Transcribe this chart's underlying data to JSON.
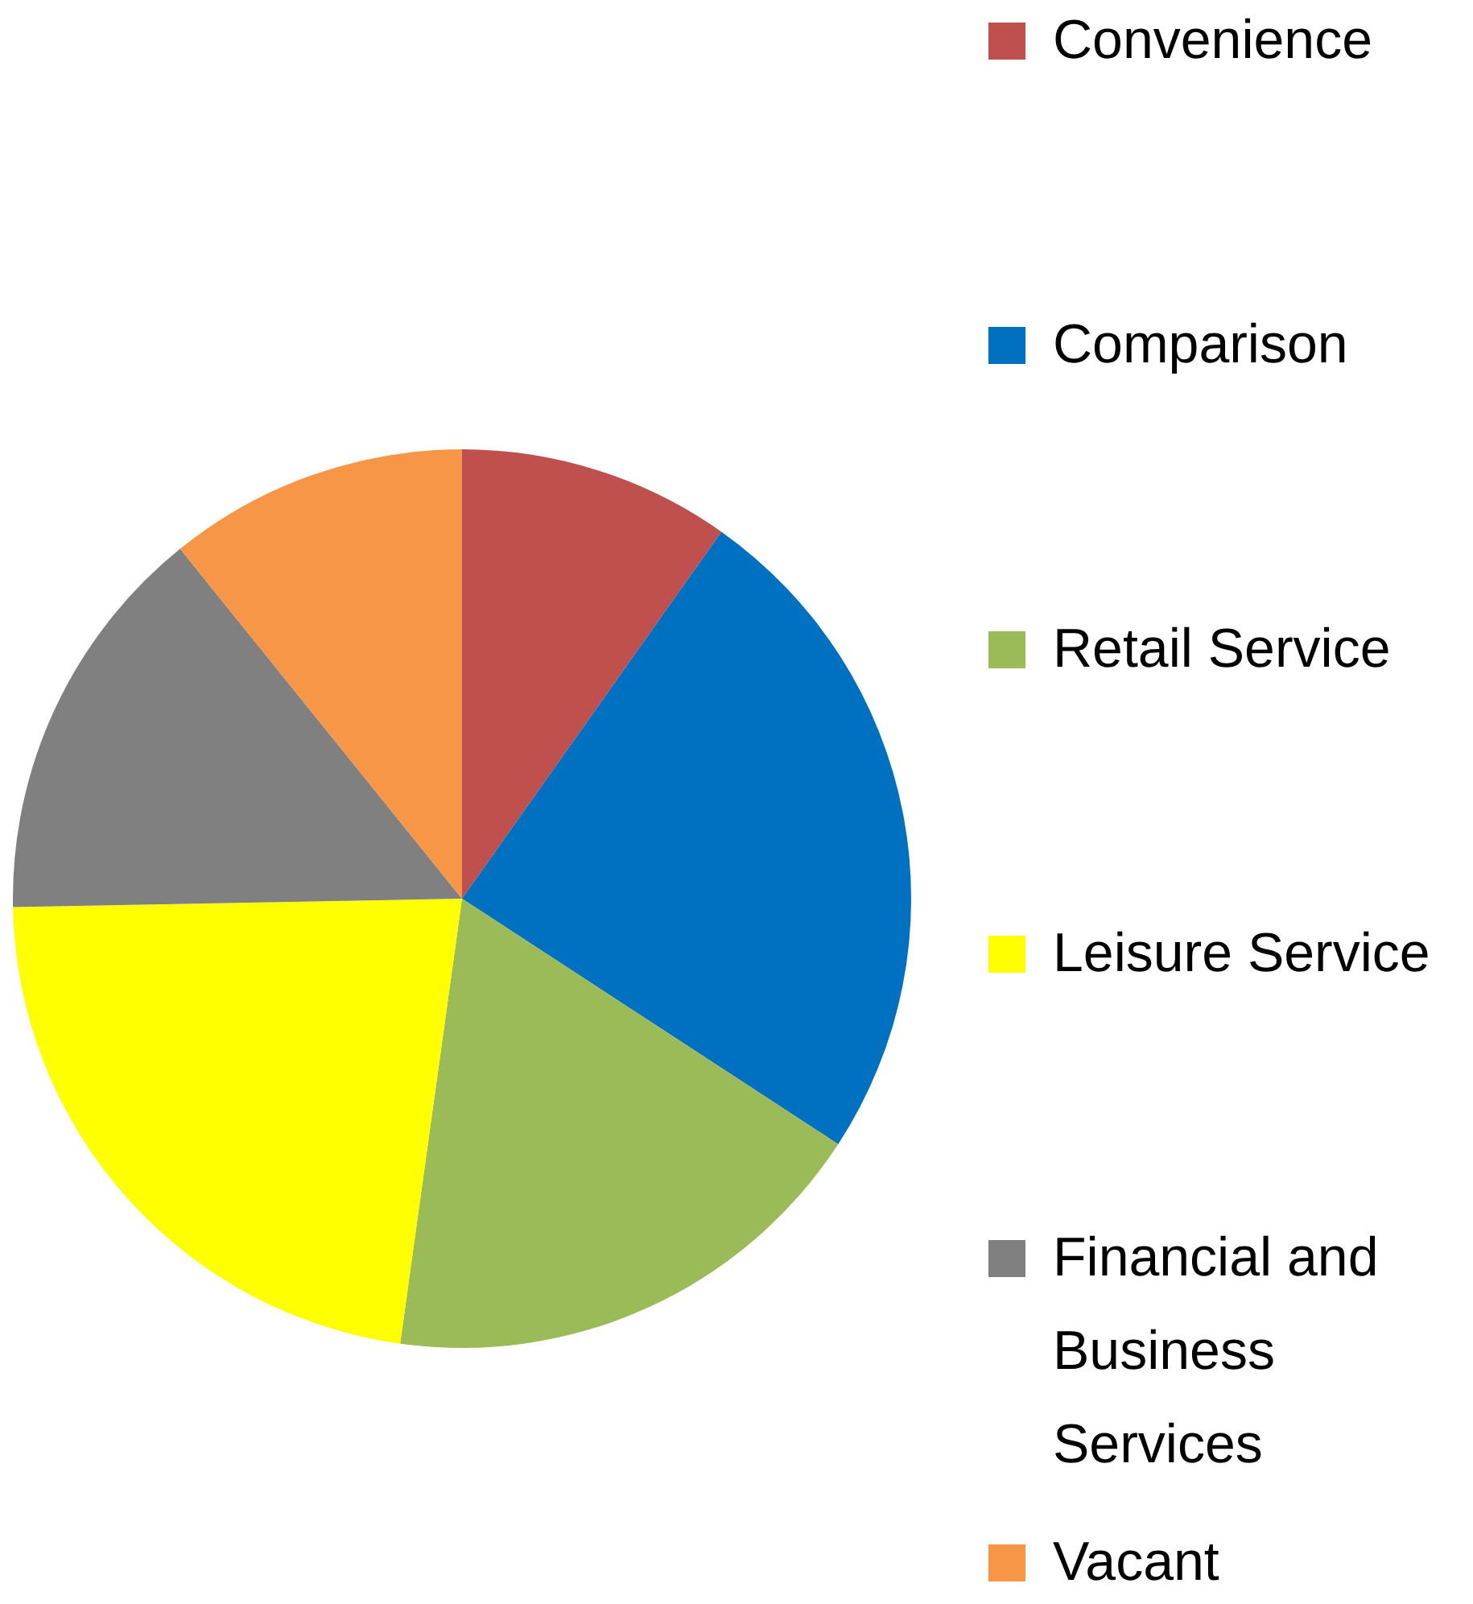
{
  "chart_data": {
    "type": "pie",
    "categories": [
      "Convenience",
      "Comparison",
      "Retail Service",
      "Leisure Service",
      "Financial and Business Services",
      "Vacant"
    ],
    "values": [
      9.8,
      24.4,
      18.0,
      22.5,
      14.5,
      10.8
    ],
    "colors": [
      "#c0504d",
      "#0070c0",
      "#9bbb59",
      "#ffff00",
      "#808080",
      "#f79646"
    ],
    "legend": "right"
  }
}
